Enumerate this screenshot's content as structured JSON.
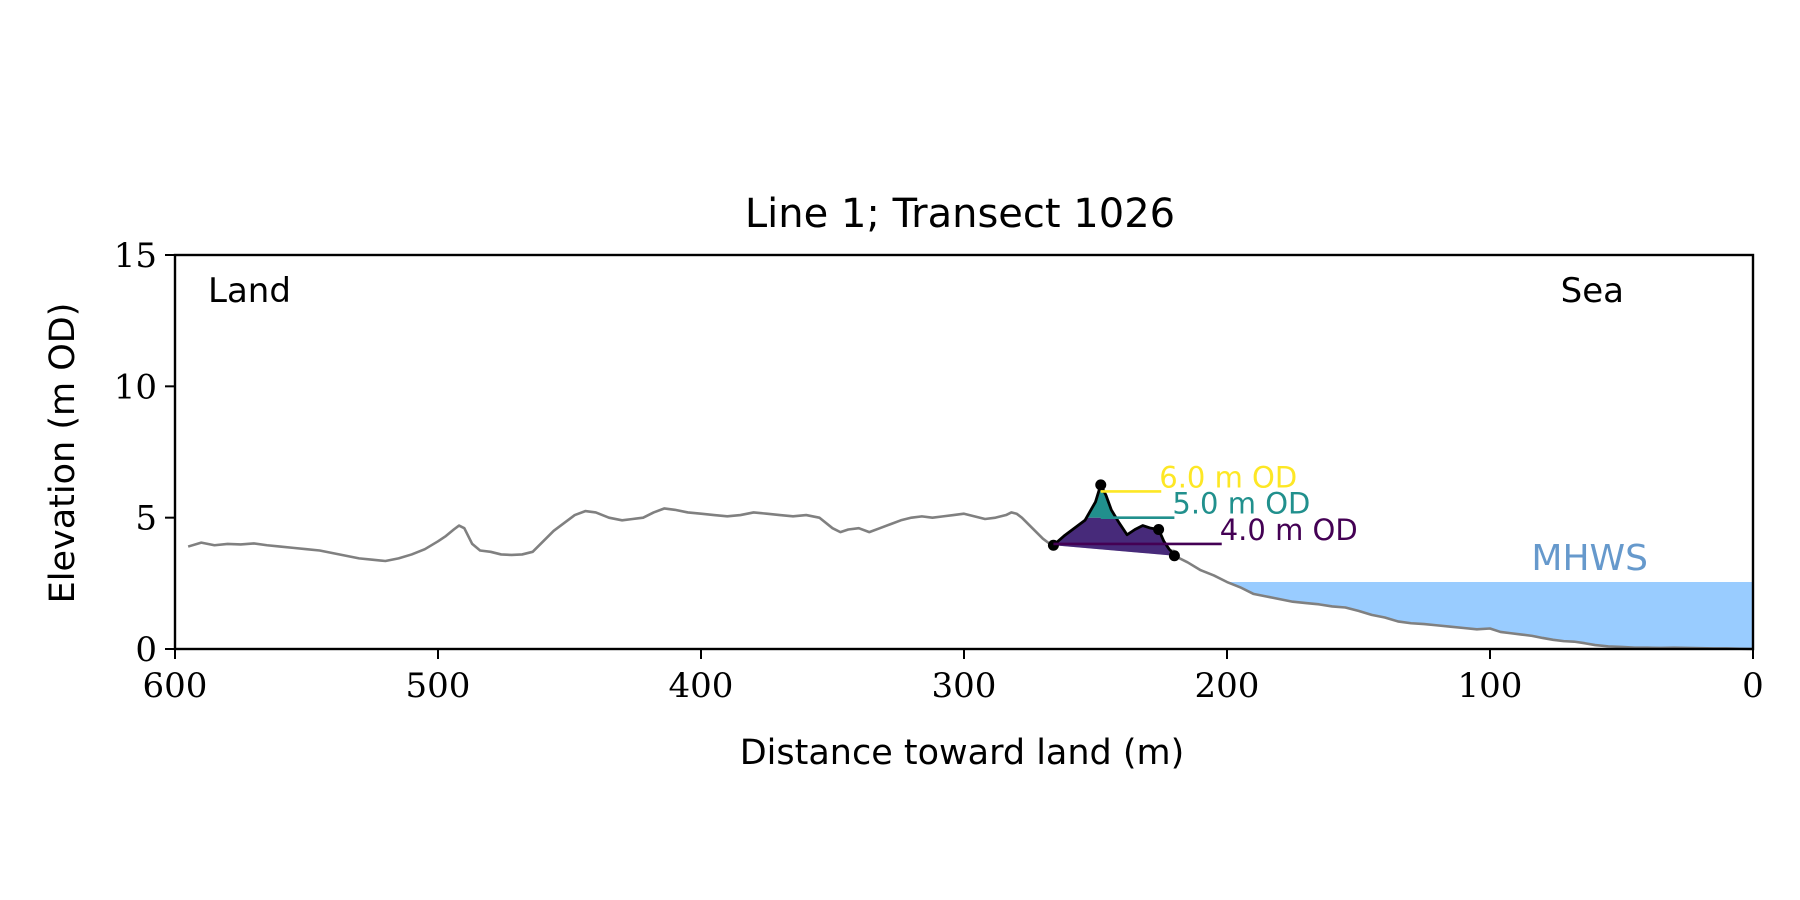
{
  "chart_data": {
    "type": "area",
    "title": "Line 1; Transect 1026",
    "xlabel": "Distance toward land (m)",
    "ylabel": "Elevation (m OD)",
    "xlim": [
      600,
      0
    ],
    "ylim": [
      0,
      15
    ],
    "x_ticks": [
      600,
      500,
      400,
      300,
      200,
      100,
      0
    ],
    "y_ticks": [
      0,
      5,
      10,
      15
    ],
    "grid": false,
    "corner_labels": {
      "left": "Land",
      "right": "Sea"
    },
    "mhws": {
      "label": "MHWS",
      "level": 2.55,
      "x_from": 200,
      "x_to": 0,
      "color": "#99ccff",
      "label_color": "#6699cc"
    },
    "profile": {
      "color": "#808080",
      "x": [
        595,
        590,
        585,
        580,
        575,
        570,
        565,
        560,
        555,
        550,
        545,
        540,
        535,
        530,
        525,
        520,
        515,
        510,
        505,
        500,
        497,
        494,
        492,
        490,
        487,
        484,
        480,
        476,
        472,
        468,
        464,
        460,
        456,
        452,
        448,
        444,
        440,
        435,
        430,
        426,
        422,
        418,
        414,
        410,
        405,
        400,
        395,
        390,
        385,
        380,
        375,
        370,
        365,
        360,
        355,
        350,
        347,
        344,
        340,
        336,
        332,
        328,
        324,
        320,
        316,
        312,
        308,
        304,
        300,
        296,
        292,
        288,
        284,
        282,
        280,
        278,
        276,
        274,
        272,
        270,
        268,
        266
      ],
      "y": [
        3.9,
        4.05,
        3.95,
        4.0,
        3.98,
        4.02,
        3.95,
        3.9,
        3.85,
        3.8,
        3.75,
        3.65,
        3.55,
        3.45,
        3.4,
        3.35,
        3.45,
        3.6,
        3.8,
        4.1,
        4.3,
        4.55,
        4.7,
        4.6,
        4.0,
        3.75,
        3.7,
        3.6,
        3.58,
        3.6,
        3.7,
        4.1,
        4.5,
        4.8,
        5.1,
        5.25,
        5.2,
        5.0,
        4.9,
        4.95,
        5.0,
        5.2,
        5.35,
        5.3,
        5.2,
        5.15,
        5.1,
        5.05,
        5.1,
        5.2,
        5.15,
        5.1,
        5.05,
        5.1,
        5.0,
        4.6,
        4.45,
        4.55,
        4.6,
        4.45,
        4.6,
        4.75,
        4.9,
        5.0,
        5.05,
        5.0,
        5.05,
        5.1,
        5.15,
        5.05,
        4.95,
        5.0,
        5.1,
        5.2,
        5.15,
        5.0,
        4.8,
        4.6,
        4.4,
        4.2,
        4.05,
        3.95
      ],
      "x_sea": [
        220,
        215,
        210,
        205,
        200,
        195,
        190,
        185,
        180,
        175,
        170,
        165,
        160,
        155,
        150,
        145,
        140,
        135,
        130,
        125,
        120,
        115,
        110,
        105,
        100,
        96,
        92,
        88,
        84,
        80,
        76,
        72,
        68,
        64,
        60,
        55,
        50,
        45,
        40,
        35,
        30,
        25,
        20,
        15,
        10,
        5,
        0
      ],
      "y_sea": [
        3.55,
        3.3,
        3.0,
        2.8,
        2.55,
        2.35,
        2.1,
        2.0,
        1.9,
        1.8,
        1.75,
        1.7,
        1.62,
        1.58,
        1.45,
        1.3,
        1.2,
        1.05,
        0.98,
        0.95,
        0.9,
        0.85,
        0.8,
        0.75,
        0.78,
        0.65,
        0.6,
        0.55,
        0.5,
        0.42,
        0.35,
        0.3,
        0.28,
        0.22,
        0.15,
        0.1,
        0.08,
        0.05,
        0.05,
        0.04,
        0.05,
        0.04,
        0.03,
        0.02,
        0.02,
        0.01,
        0.0
      ]
    },
    "dune": {
      "x": [
        266,
        262,
        258,
        254,
        250,
        248,
        246,
        244,
        241,
        238,
        235,
        232,
        229,
        226,
        224,
        222,
        220
      ],
      "y": [
        3.95,
        4.3,
        4.6,
        4.9,
        5.6,
        6.25,
        5.85,
        5.3,
        4.8,
        4.35,
        4.55,
        4.7,
        4.6,
        4.55,
        4.1,
        3.8,
        3.6
      ],
      "base_points": [
        [
          266,
          3.95
        ],
        [
          220,
          3.55
        ]
      ],
      "peak_point": [
        248,
        6.25
      ],
      "secondary_point": [
        226,
        4.55
      ],
      "outline_color": "#000000",
      "toe_shading_color": "#c8c8c8",
      "layers": [
        {
          "level": 4.0,
          "color": "#472a7a"
        },
        {
          "level": 5.0,
          "color": "#21908d"
        },
        {
          "level": 6.0,
          "color": "#b5de2b"
        }
      ]
    },
    "thresholds": [
      {
        "label": "6.0 m OD",
        "level": 6.0,
        "line_x": [
          248,
          225
        ],
        "color": "#fde725"
      },
      {
        "label": "5.0 m OD",
        "level": 5.0,
        "line_x": [
          248,
          220
        ],
        "color": "#21908d"
      },
      {
        "label": "4.0 m OD",
        "level": 4.0,
        "line_x": [
          266,
          202
        ],
        "color": "#440154"
      }
    ]
  }
}
